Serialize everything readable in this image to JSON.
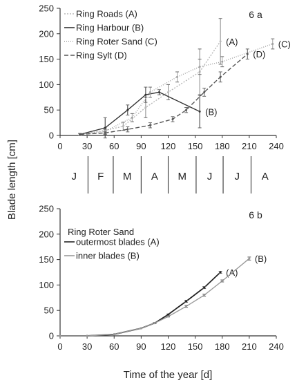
{
  "figure": {
    "ylabel": "Blade length [cm]",
    "xlabel": "Time of the year [d]"
  },
  "months": [
    "J",
    "F",
    "M",
    "A",
    "M",
    "J",
    "J",
    "A"
  ],
  "month_bounds": [
    31,
    59,
    90,
    120,
    151,
    181,
    212
  ],
  "chart_data": [
    {
      "type": "line",
      "panel_label": "6 a",
      "legend_title": "",
      "x_ticks": [
        0,
        30,
        60,
        90,
        120,
        150,
        180,
        210,
        240
      ],
      "y_ticks": [
        0,
        50,
        100,
        150,
        200,
        250
      ],
      "xlim": [
        0,
        240
      ],
      "ylim": [
        0,
        250
      ],
      "grid": false,
      "legend_position": "top-left",
      "series": [
        {
          "name": "Ring Roads (A)",
          "end_label": "(A)",
          "color": "#b8b8b8",
          "dash": "2,2",
          "points": [
            {
              "x": 22,
              "y": 2,
              "err": 2
            },
            {
              "x": 50,
              "y": 10,
              "err": 5
            },
            {
              "x": 70,
              "y": 18,
              "err": 8
            },
            {
              "x": 95,
              "y": 55,
              "err": 20
            },
            {
              "x": 120,
              "y": 85,
              "err": 15
            },
            {
              "x": 155,
              "y": 125,
              "err": 45
            },
            {
              "x": 178,
              "y": 185,
              "err": 45
            }
          ]
        },
        {
          "name": "Ring Harbour (B)",
          "end_label": "(B)",
          "color": "#333333",
          "dash": "",
          "points": [
            {
              "x": 22,
              "y": 2,
              "err": 2
            },
            {
              "x": 50,
              "y": 15,
              "err": 20
            },
            {
              "x": 75,
              "y": 50,
              "err": 10
            },
            {
              "x": 95,
              "y": 80,
              "err": 15
            },
            {
              "x": 110,
              "y": 85,
              "err": 5
            },
            {
              "x": 155,
              "y": 47,
              "err": 32
            }
          ]
        },
        {
          "name": "Ring Roter Sand (C)",
          "end_label": "(C)",
          "color": "#a0a0a0",
          "dash": "1,2",
          "points": [
            {
              "x": 22,
              "y": 2,
              "err": 2
            },
            {
              "x": 50,
              "y": 8,
              "err": 4
            },
            {
              "x": 80,
              "y": 35,
              "err": 8
            },
            {
              "x": 100,
              "y": 85,
              "err": 10
            },
            {
              "x": 130,
              "y": 115,
              "err": 10
            },
            {
              "x": 155,
              "y": 135,
              "err": 15
            },
            {
              "x": 180,
              "y": 145,
              "err": 10
            },
            {
              "x": 236,
              "y": 180,
              "err": 10
            }
          ]
        },
        {
          "name": "Ring Sylt (D)",
          "end_label": "(D)",
          "color": "#555555",
          "dash": "6,3",
          "points": [
            {
              "x": 22,
              "y": 2,
              "err": 2
            },
            {
              "x": 50,
              "y": 5,
              "err": 3
            },
            {
              "x": 75,
              "y": 12,
              "err": 5
            },
            {
              "x": 100,
              "y": 20,
              "err": 5
            },
            {
              "x": 125,
              "y": 32,
              "err": 5
            },
            {
              "x": 140,
              "y": 50,
              "err": 5
            },
            {
              "x": 160,
              "y": 85,
              "err": 8
            },
            {
              "x": 178,
              "y": 115,
              "err": 10
            },
            {
              "x": 208,
              "y": 160,
              "err": 10
            }
          ]
        }
      ]
    },
    {
      "type": "line",
      "panel_label": "6 b",
      "legend_title": "Ring Roter Sand",
      "x_ticks": [
        0,
        30,
        60,
        90,
        120,
        150,
        180,
        210,
        240
      ],
      "y_ticks": [
        0,
        50,
        100,
        150,
        200,
        250
      ],
      "xlim": [
        0,
        240
      ],
      "ylim": [
        0,
        250
      ],
      "grid": false,
      "legend_position": "top-left",
      "series": [
        {
          "name": "outermost blades (A)",
          "end_label": "(A)",
          "color": "#222222",
          "dash": "",
          "points": [
            {
              "x": 0,
              "y": 0,
              "err": 0
            },
            {
              "x": 30,
              "y": 0,
              "err": 0
            },
            {
              "x": 60,
              "y": 3,
              "err": 0
            },
            {
              "x": 90,
              "y": 15,
              "err": 0
            },
            {
              "x": 105,
              "y": 25,
              "err": 1
            },
            {
              "x": 120,
              "y": 42,
              "err": 1
            },
            {
              "x": 140,
              "y": 68,
              "err": 2
            },
            {
              "x": 160,
              "y": 95,
              "err": 2
            },
            {
              "x": 178,
              "y": 125,
              "err": 2
            }
          ]
        },
        {
          "name": "inner blades (B)",
          "end_label": "(B)",
          "color": "#9a9a9a",
          "dash": "",
          "points": [
            {
              "x": 0,
              "y": 0,
              "err": 0
            },
            {
              "x": 30,
              "y": 0,
              "err": 0
            },
            {
              "x": 60,
              "y": 3,
              "err": 0
            },
            {
              "x": 90,
              "y": 15,
              "err": 0
            },
            {
              "x": 105,
              "y": 25,
              "err": 1
            },
            {
              "x": 120,
              "y": 38,
              "err": 1
            },
            {
              "x": 140,
              "y": 58,
              "err": 2
            },
            {
              "x": 160,
              "y": 80,
              "err": 2
            },
            {
              "x": 180,
              "y": 108,
              "err": 2
            },
            {
              "x": 210,
              "y": 152,
              "err": 3
            }
          ]
        }
      ]
    }
  ]
}
